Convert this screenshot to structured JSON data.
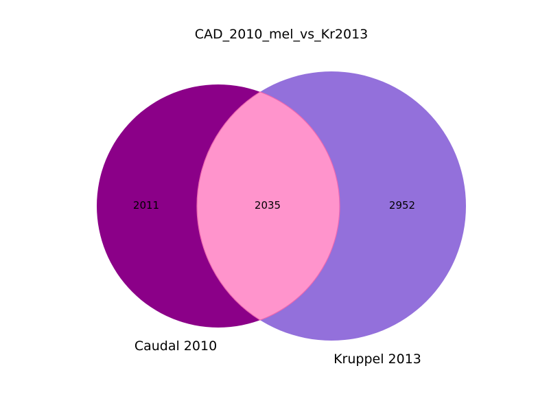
{
  "title": "CAD_2010_mel_vs_Kr2013",
  "sets": [
    {
      "name": "Caudal 2010",
      "only_count": "2011",
      "color": "#8b0088"
    },
    {
      "name": "Kruppel 2013",
      "only_count": "2952",
      "color": "#9370db"
    }
  ],
  "intersection": {
    "count": "2035",
    "color": "#ff94cc",
    "edge_color": "#ee66b0"
  }
}
